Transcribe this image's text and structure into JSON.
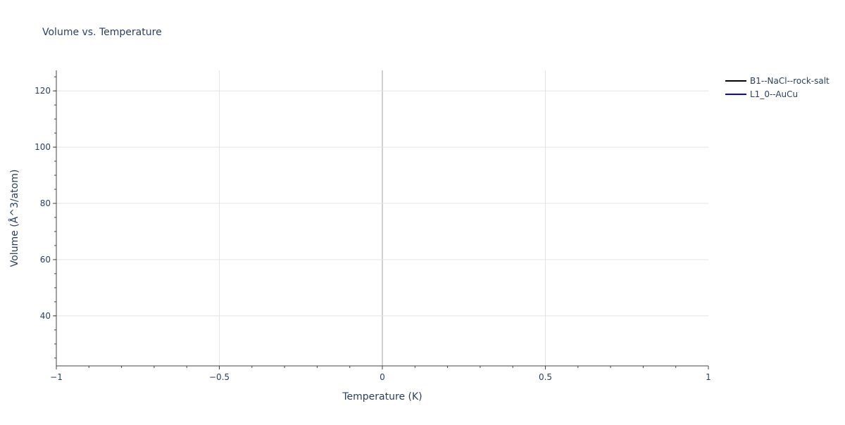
{
  "chart_data": {
    "type": "line",
    "title": "Volume vs. Temperature",
    "xlabel": "Temperature (K)",
    "ylabel": "Volume (Å^3/atom)",
    "xlim": [
      -1,
      1
    ],
    "ylim": [
      22.2,
      127.3
    ],
    "xticks": [
      -1,
      -0.5,
      0,
      0.5,
      1
    ],
    "xtick_labels": [
      "−1",
      "−0.5",
      "0",
      "0.5",
      "1"
    ],
    "yticks": [
      40,
      60,
      80,
      100,
      120
    ],
    "ytick_labels": [
      "40",
      "60",
      "80",
      "100",
      "120"
    ],
    "grid": true,
    "legend_position": "top-right",
    "series": [
      {
        "name": "B1--NaCl--rock-salt",
        "color": "#000000",
        "x": [],
        "y": []
      },
      {
        "name": "L1_0--AuCu",
        "color": "#0000ff",
        "x": [],
        "y": []
      }
    ]
  }
}
